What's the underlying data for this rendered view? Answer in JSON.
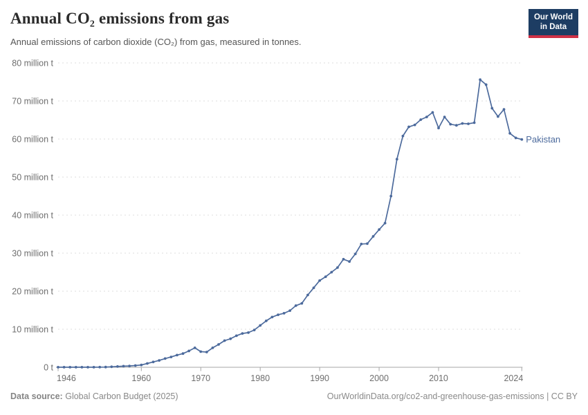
{
  "header": {
    "title": "Annual CO₂ emissions from gas",
    "subtitle": "Annual emissions of carbon dioxide (CO₂) from gas, measured in tonnes.",
    "logo": {
      "line1": "Our World",
      "line2": "in Data",
      "bg_color": "#1d3d63",
      "accent_color": "#cf3146"
    }
  },
  "chart_data": {
    "type": "line",
    "title": "Annual CO₂ emissions from gas",
    "ylabel": "",
    "xlabel": "",
    "unit": "million t",
    "ylim": [
      0,
      80
    ],
    "grid": "horizontal-dashed",
    "legend_position": "end-of-line-label",
    "entity": "Pakistan",
    "line_color": "#4c6a9c",
    "axis_color": "#a5a5a5",
    "grid_color": "#dcdcdc",
    "tick_label_color": "#6e6e6e",
    "xticks": [
      1946,
      1960,
      1970,
      1980,
      1990,
      2000,
      2010,
      2024
    ],
    "yticks": [
      {
        "value": 0,
        "label": "0 t"
      },
      {
        "value": 10,
        "label": "10 million t"
      },
      {
        "value": 20,
        "label": "20 million t"
      },
      {
        "value": 30,
        "label": "30 million t"
      },
      {
        "value": 40,
        "label": "40 million t"
      },
      {
        "value": 50,
        "label": "50 million t"
      },
      {
        "value": 60,
        "label": "60 million t"
      },
      {
        "value": 70,
        "label": "70 million t"
      },
      {
        "value": 80,
        "label": "80 million t"
      }
    ],
    "x": [
      1946,
      1947,
      1948,
      1949,
      1950,
      1951,
      1952,
      1953,
      1954,
      1955,
      1956,
      1957,
      1958,
      1959,
      1960,
      1961,
      1962,
      1963,
      1964,
      1965,
      1966,
      1967,
      1968,
      1969,
      1970,
      1971,
      1972,
      1973,
      1974,
      1975,
      1976,
      1977,
      1978,
      1979,
      1980,
      1981,
      1982,
      1983,
      1984,
      1985,
      1986,
      1987,
      1988,
      1989,
      1990,
      1991,
      1992,
      1993,
      1994,
      1995,
      1996,
      1997,
      1998,
      1999,
      2000,
      2001,
      2002,
      2003,
      2004,
      2005,
      2006,
      2007,
      2008,
      2009,
      2010,
      2011,
      2012,
      2013,
      2014,
      2015,
      2016,
      2017,
      2018,
      2019,
      2020,
      2021,
      2022,
      2023,
      2024
    ],
    "series": [
      {
        "name": "Pakistan",
        "color": "#4c6a9c",
        "values": [
          0.02,
          0.02,
          0.02,
          0.02,
          0.02,
          0.02,
          0.02,
          0.03,
          0.06,
          0.12,
          0.2,
          0.3,
          0.35,
          0.45,
          0.6,
          1.0,
          1.4,
          1.8,
          2.3,
          2.7,
          3.2,
          3.6,
          4.3,
          5.1,
          4.1,
          4.0,
          5.1,
          6.0,
          7.0,
          7.5,
          8.3,
          8.9,
          9.1,
          9.8,
          11.0,
          12.2,
          13.2,
          13.8,
          14.2,
          14.9,
          16.2,
          16.8,
          19.0,
          20.9,
          22.8,
          23.8,
          25.0,
          26.2,
          28.4,
          27.8,
          29.8,
          32.4,
          32.5,
          34.4,
          36.2,
          37.9,
          45.0,
          54.7,
          60.8,
          63.2,
          63.7,
          65.1,
          65.8,
          67.0,
          62.9,
          65.8,
          63.9,
          63.6,
          64.1,
          64.0,
          64.3,
          75.6,
          74.3,
          68.1,
          65.9,
          67.8,
          61.5,
          60.3,
          59.9
        ]
      }
    ]
  },
  "footer": {
    "datasource_label": "Data source:",
    "datasource_value": "Global Carbon Budget (2025)",
    "citation": "OurWorldinData.org/co2-and-greenhouse-gas-emissions | CC BY"
  }
}
